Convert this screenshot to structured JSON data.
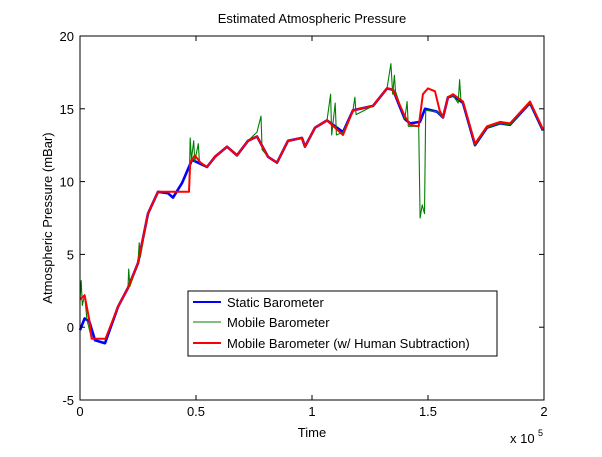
{
  "chart_data": {
    "type": "line",
    "title": "Estimated Atmospheric Pressure",
    "xlabel": "Time",
    "ylabel": "Atmospheric Pressure (mBar)",
    "x_exponent_label": "x 10",
    "x_exponent_power": "5",
    "xlim": [
      0,
      200000
    ],
    "ylim": [
      -5,
      20
    ],
    "xticks": [
      0,
      50000,
      100000,
      150000,
      200000
    ],
    "xtick_labels": [
      "0",
      "0.5",
      "1",
      "1.5",
      "2"
    ],
    "yticks": [
      -5,
      0,
      5,
      10,
      15,
      20
    ],
    "ytick_labels": [
      "-5",
      "0",
      "5",
      "10",
      "15",
      "20"
    ],
    "grid": false,
    "legend_placement": "lower-center",
    "series": [
      {
        "name": "Static Barometer",
        "color": "#0000ff",
        "points": [
          [
            0,
            -0.2
          ],
          [
            2000,
            0.6
          ],
          [
            4000,
            0.4
          ],
          [
            6466,
            -0.9
          ],
          [
            10776,
            -1.1
          ],
          [
            16379,
            1.4
          ],
          [
            20690,
            2.7
          ],
          [
            25000,
            4.4
          ],
          [
            29310,
            7.8
          ],
          [
            33620,
            9.3
          ],
          [
            37930,
            9.2
          ],
          [
            40086,
            8.9
          ],
          [
            43966,
            9.9
          ],
          [
            48276,
            11.5
          ],
          [
            54741,
            11.0
          ],
          [
            58190,
            11.7
          ],
          [
            63362,
            12.4
          ],
          [
            67672,
            11.8
          ],
          [
            72414,
            12.8
          ],
          [
            76293,
            13.1
          ],
          [
            81034,
            11.7
          ],
          [
            84914,
            11.3
          ],
          [
            89655,
            12.8
          ],
          [
            95690,
            13.0
          ],
          [
            96983,
            12.4
          ],
          [
            101293,
            13.7
          ],
          [
            106466,
            14.2
          ],
          [
            113362,
            13.4
          ],
          [
            117672,
            14.9
          ],
          [
            126293,
            15.2
          ],
          [
            132328,
            16.4
          ],
          [
            134914,
            16.3
          ],
          [
            140000,
            14.3
          ],
          [
            142241,
            14.0
          ],
          [
            146552,
            14.1
          ],
          [
            148707,
            15.0
          ],
          [
            153879,
            14.8
          ],
          [
            156466,
            14.4
          ],
          [
            158621,
            15.8
          ],
          [
            160776,
            15.9
          ],
          [
            165086,
            15.4
          ],
          [
            170259,
            12.5
          ],
          [
            175431,
            13.7
          ],
          [
            181034,
            14.0
          ],
          [
            185345,
            13.9
          ],
          [
            193966,
            15.4
          ],
          [
            199569,
            13.5
          ]
        ]
      },
      {
        "name": "Mobile Barometer",
        "color": "#007f00",
        "points": [
          [
            0,
            1.9
          ],
          [
            500,
            3.2
          ],
          [
            1000,
            1.5
          ],
          [
            2000,
            2.2
          ],
          [
            3000,
            0.5
          ],
          [
            5000,
            -0.8
          ],
          [
            11000,
            -0.8
          ],
          [
            16379,
            1.4
          ],
          [
            20690,
            2.7
          ],
          [
            21000,
            4.0
          ],
          [
            21500,
            2.8
          ],
          [
            25000,
            4.4
          ],
          [
            25500,
            5.8
          ],
          [
            26000,
            4.8
          ],
          [
            29310,
            7.8
          ],
          [
            33620,
            9.3
          ],
          [
            47000,
            9.3
          ],
          [
            47500,
            13.0
          ],
          [
            48000,
            11.5
          ],
          [
            49000,
            12.8
          ],
          [
            49500,
            11.4
          ],
          [
            51000,
            12.6
          ],
          [
            51500,
            11.3
          ],
          [
            54741,
            11.0
          ],
          [
            58190,
            11.7
          ],
          [
            63362,
            12.4
          ],
          [
            67672,
            11.8
          ],
          [
            72414,
            12.8
          ],
          [
            76293,
            13.4
          ],
          [
            78000,
            14.5
          ],
          [
            78500,
            12.2
          ],
          [
            81034,
            11.7
          ],
          [
            84914,
            11.3
          ],
          [
            89655,
            12.8
          ],
          [
            95690,
            13.0
          ],
          [
            96983,
            12.4
          ],
          [
            101293,
            13.7
          ],
          [
            106466,
            14.2
          ],
          [
            108000,
            16.0
          ],
          [
            108500,
            13.2
          ],
          [
            110000,
            15.4
          ],
          [
            110500,
            13.2
          ],
          [
            113362,
            13.4
          ],
          [
            117672,
            14.9
          ],
          [
            118500,
            15.8
          ],
          [
            119000,
            14.6
          ],
          [
            126293,
            15.2
          ],
          [
            132328,
            16.4
          ],
          [
            134000,
            18.1
          ],
          [
            134800,
            16.0
          ],
          [
            135500,
            17.3
          ],
          [
            136000,
            16.2
          ],
          [
            140000,
            14.3
          ],
          [
            141000,
            15.5
          ],
          [
            141500,
            13.8
          ],
          [
            146000,
            13.8
          ],
          [
            146600,
            7.5
          ],
          [
            147500,
            8.4
          ],
          [
            148500,
            7.8
          ],
          [
            149000,
            14.9
          ],
          [
            153879,
            14.8
          ],
          [
            156466,
            14.4
          ],
          [
            158621,
            15.8
          ],
          [
            160776,
            15.9
          ],
          [
            163000,
            15.4
          ],
          [
            163600,
            17.0
          ],
          [
            164200,
            15.6
          ],
          [
            165086,
            15.4
          ],
          [
            170259,
            12.5
          ],
          [
            175431,
            13.7
          ],
          [
            181034,
            14.0
          ],
          [
            185345,
            13.9
          ],
          [
            193966,
            15.4
          ],
          [
            199569,
            13.5
          ]
        ]
      },
      {
        "name": "Mobile Barometer (w/ Human Subtraction)",
        "color": "#ff0000",
        "points": [
          [
            0,
            1.9
          ],
          [
            2000,
            2.2
          ],
          [
            4000,
            0.5
          ],
          [
            5000,
            -0.8
          ],
          [
            11000,
            -0.8
          ],
          [
            16379,
            1.4
          ],
          [
            20690,
            2.7
          ],
          [
            25000,
            4.4
          ],
          [
            29310,
            7.8
          ],
          [
            33620,
            9.3
          ],
          [
            37930,
            9.3
          ],
          [
            47000,
            9.3
          ],
          [
            47500,
            11.3
          ],
          [
            49500,
            11.8
          ],
          [
            52000,
            11.3
          ],
          [
            54741,
            11.0
          ],
          [
            58190,
            11.7
          ],
          [
            63362,
            12.4
          ],
          [
            67672,
            11.8
          ],
          [
            72414,
            12.8
          ],
          [
            76293,
            13.1
          ],
          [
            81034,
            11.7
          ],
          [
            84914,
            11.3
          ],
          [
            89655,
            12.8
          ],
          [
            95690,
            13.0
          ],
          [
            96983,
            12.4
          ],
          [
            101293,
            13.7
          ],
          [
            106466,
            14.2
          ],
          [
            113362,
            13.2
          ],
          [
            117672,
            14.9
          ],
          [
            126293,
            15.2
          ],
          [
            132328,
            16.4
          ],
          [
            134914,
            16.3
          ],
          [
            140000,
            14.5
          ],
          [
            142241,
            13.9
          ],
          [
            146000,
            13.8
          ],
          [
            147800,
            16.0
          ],
          [
            150000,
            16.4
          ],
          [
            153000,
            16.2
          ],
          [
            155000,
            14.9
          ],
          [
            156466,
            14.4
          ],
          [
            158621,
            15.8
          ],
          [
            160776,
            16.0
          ],
          [
            165086,
            15.5
          ],
          [
            170259,
            12.6
          ],
          [
            175431,
            13.8
          ],
          [
            181034,
            14.1
          ],
          [
            185345,
            14.0
          ],
          [
            193966,
            15.5
          ],
          [
            199569,
            13.6
          ]
        ]
      }
    ]
  }
}
